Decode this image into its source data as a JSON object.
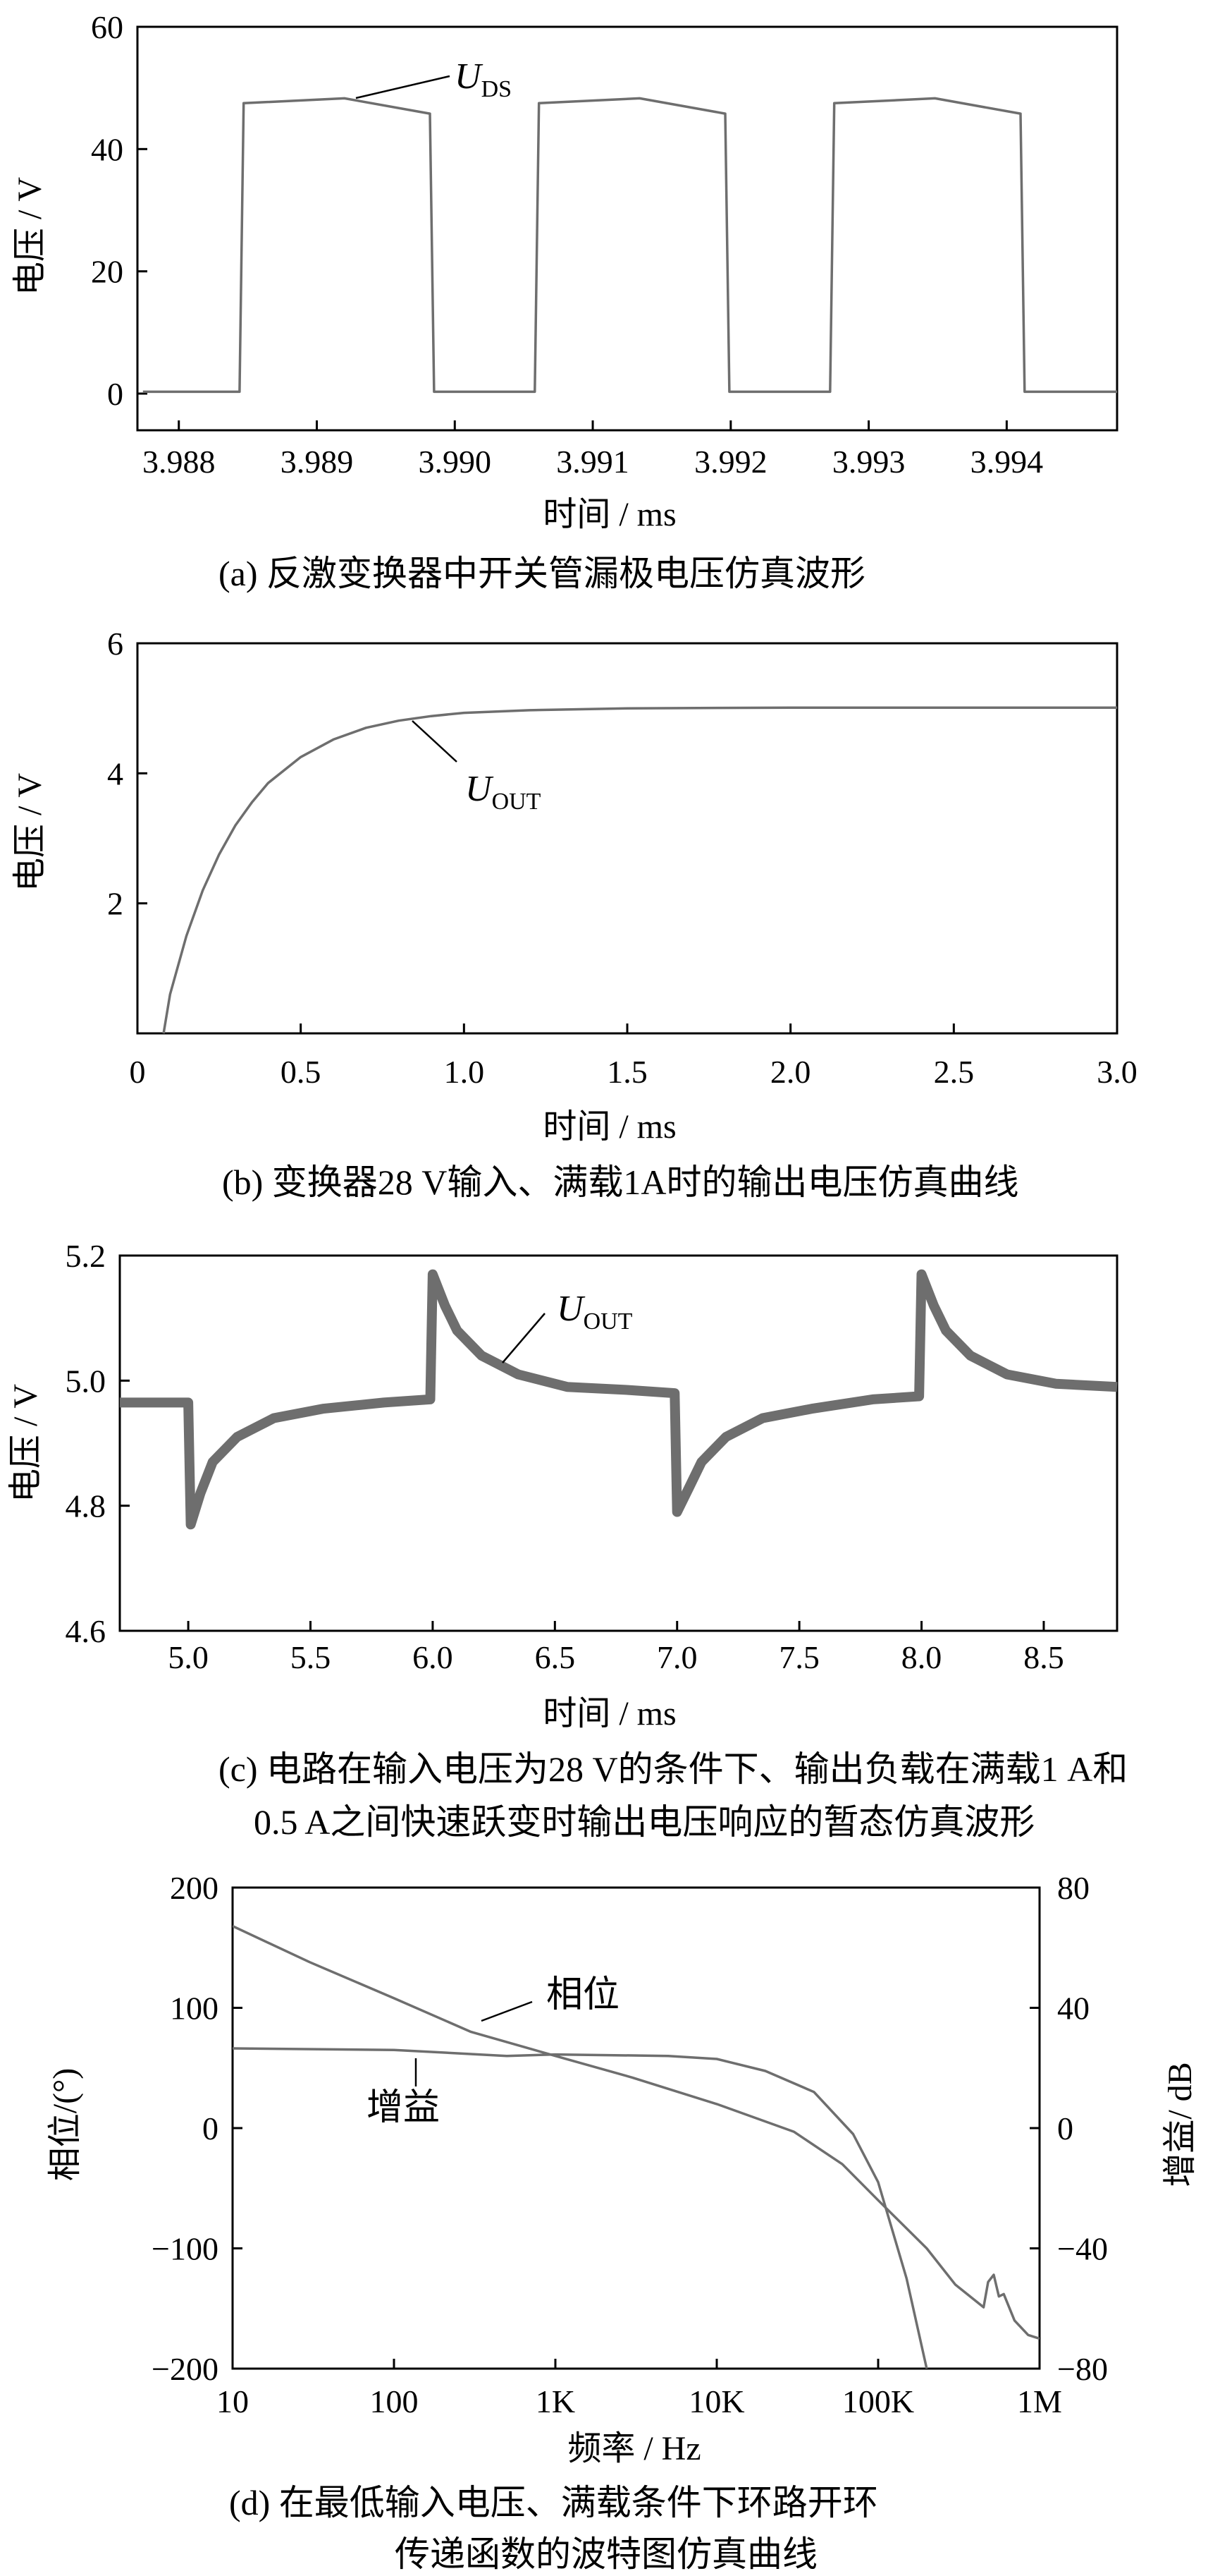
{
  "chart_data": [
    {
      "id": "a",
      "type": "line",
      "caption": "(a)  反激变换器中开关管漏极电压仿真波形",
      "xlabel": "时间 / ms",
      "ylabel": "电压 / V",
      "xlim": [
        3.9877,
        3.9948
      ],
      "ylim": [
        -6,
        60
      ],
      "xticks": [
        3.988,
        3.989,
        3.99,
        3.991,
        3.992,
        3.993,
        3.994
      ],
      "xtick_labels": [
        "3.988",
        "3.989",
        "3.990",
        "3.991",
        "3.992",
        "3.993",
        "3.994"
      ],
      "yticks": [
        0,
        20,
        40,
        60
      ],
      "ytick_labels": [
        "0",
        "20",
        "40",
        "60"
      ],
      "series": [
        {
          "label_main": "U",
          "label_sub": "DS",
          "points": [
            [
              3.98774,
              0.3
            ],
            [
              3.98844,
              0.3
            ],
            [
              3.98847,
              47.5
            ],
            [
              3.9892,
              48.3
            ],
            [
              3.98982,
              45.8
            ],
            [
              3.98985,
              0.3
            ],
            [
              3.99058,
              0.3
            ],
            [
              3.99061,
              47.5
            ],
            [
              3.99134,
              48.3
            ],
            [
              3.99196,
              45.8
            ],
            [
              3.99199,
              0.3
            ],
            [
              3.99272,
              0.3
            ],
            [
              3.99275,
              47.5
            ],
            [
              3.99348,
              48.3
            ],
            [
              3.9941,
              45.8
            ],
            [
              3.99413,
              0.3
            ],
            [
              3.9948,
              0.3
            ]
          ]
        }
      ]
    },
    {
      "id": "b",
      "type": "line",
      "caption": "(b)  变换器28 V输入、满载1A时的输出电压仿真曲线",
      "xlabel": "时间 / ms",
      "ylabel": "电压 / V",
      "xlim": [
        0,
        3.0
      ],
      "ylim": [
        0,
        6
      ],
      "xticks": [
        0,
        0.5,
        1.0,
        1.5,
        2.0,
        2.5,
        3.0
      ],
      "xtick_labels": [
        "0",
        "0.5",
        "1.0",
        "1.5",
        "2.0",
        "2.5",
        "3.0"
      ],
      "yticks": [
        2,
        4,
        6
      ],
      "ytick_labels": [
        "2",
        "4",
        "6"
      ],
      "series": [
        {
          "label_main": "U",
          "label_sub": "OUT",
          "points": [
            [
              0.08,
              0.0
            ],
            [
              0.1,
              0.6
            ],
            [
              0.15,
              1.5
            ],
            [
              0.2,
              2.2
            ],
            [
              0.25,
              2.75
            ],
            [
              0.3,
              3.2
            ],
            [
              0.35,
              3.55
            ],
            [
              0.4,
              3.85
            ],
            [
              0.5,
              4.25
            ],
            [
              0.6,
              4.52
            ],
            [
              0.7,
              4.7
            ],
            [
              0.8,
              4.81
            ],
            [
              0.9,
              4.88
            ],
            [
              1.0,
              4.93
            ],
            [
              1.2,
              4.97
            ],
            [
              1.5,
              5.0
            ],
            [
              2.0,
              5.01
            ],
            [
              2.5,
              5.01
            ],
            [
              3.0,
              5.01
            ]
          ]
        }
      ]
    },
    {
      "id": "c",
      "type": "line",
      "caption": "(c)  电路在输入电压为28 V的条件下、输出负载在满载1 A和",
      "caption2": "0.5 A之间快速跃变时输出电压响应的暂态仿真波形",
      "xlabel": "时间 / ms",
      "ylabel": "电压 / V",
      "xlim": [
        4.72,
        8.8
      ],
      "ylim": [
        4.6,
        5.2
      ],
      "xticks": [
        5.0,
        5.5,
        6.0,
        6.5,
        7.0,
        7.5,
        8.0,
        8.5
      ],
      "xtick_labels": [
        "5.0",
        "5.5",
        "6.0",
        "6.5",
        "7.0",
        "7.5",
        "8.0",
        "8.5"
      ],
      "yticks": [
        4.6,
        4.8,
        5.0,
        5.2
      ],
      "ytick_labels": [
        "4.6",
        "4.8",
        "5.0",
        "5.2"
      ],
      "series": [
        {
          "label_main": "U",
          "label_sub": "OUT",
          "points": [
            [
              4.72,
              4.965
            ],
            [
              5.0,
              4.965
            ],
            [
              5.01,
              4.77
            ],
            [
              5.05,
              4.82
            ],
            [
              5.1,
              4.87
            ],
            [
              5.2,
              4.91
            ],
            [
              5.35,
              4.94
            ],
            [
              5.55,
              4.955
            ],
            [
              5.8,
              4.965
            ],
            [
              5.99,
              4.97
            ],
            [
              6.0,
              5.17
            ],
            [
              6.05,
              5.12
            ],
            [
              6.1,
              5.08
            ],
            [
              6.2,
              5.04
            ],
            [
              6.35,
              5.01
            ],
            [
              6.55,
              4.99
            ],
            [
              6.8,
              4.985
            ],
            [
              6.99,
              4.98
            ],
            [
              7.0,
              4.79
            ],
            [
              7.05,
              4.83
            ],
            [
              7.1,
              4.87
            ],
            [
              7.2,
              4.91
            ],
            [
              7.35,
              4.94
            ],
            [
              7.55,
              4.955
            ],
            [
              7.8,
              4.97
            ],
            [
              7.99,
              4.975
            ],
            [
              8.0,
              5.17
            ],
            [
              8.05,
              5.12
            ],
            [
              8.1,
              5.08
            ],
            [
              8.2,
              5.04
            ],
            [
              8.35,
              5.01
            ],
            [
              8.55,
              4.995
            ],
            [
              8.8,
              4.99
            ]
          ]
        }
      ]
    },
    {
      "id": "d",
      "type": "line",
      "caption": "(d)  在最低输入电压、满载条件下环路开环",
      "caption2": "传递函数的波特图仿真曲线",
      "xlabel": "频率 / Hz",
      "ylabel_left": "相位/(°)",
      "ylabel_right": "增益/ dB",
      "xscale": "log",
      "xlim": [
        10,
        1000000
      ],
      "ylim_left": [
        -200,
        200
      ],
      "ylim_right": [
        -80,
        80
      ],
      "xticks": [
        10,
        100,
        1000,
        10000,
        100000,
        1000000
      ],
      "xtick_labels": [
        "10",
        "100",
        "1K",
        "10K",
        "100K",
        "1M"
      ],
      "yticks_left": [
        -200,
        -100,
        0,
        100,
        200
      ],
      "ytick_labels_left": [
        "−200",
        "−100",
        "0",
        "100",
        "200"
      ],
      "yticks_right": [
        -80,
        -40,
        0,
        40,
        80
      ],
      "ytick_labels_right": [
        "−80",
        "−40",
        "0",
        "40",
        "80"
      ],
      "series": [
        {
          "name": "相位",
          "axis": "left",
          "points": [
            [
              10,
              168
            ],
            [
              30,
              138
            ],
            [
              100,
              108
            ],
            [
              300,
              80
            ],
            [
              1000,
              60
            ],
            [
              3000,
              42
            ],
            [
              10000,
              20
            ],
            [
              30000,
              -3
            ],
            [
              60000,
              -30
            ],
            [
              100000,
              -60
            ],
            [
              200000,
              -100
            ],
            [
              300000,
              -130
            ],
            [
              450000,
              -149
            ],
            [
              480000,
              -128
            ],
            [
              520000,
              -122
            ],
            [
              560000,
              -140
            ],
            [
              600000,
              -138
            ],
            [
              700000,
              -160
            ],
            [
              850000,
              -172
            ],
            [
              1000000,
              -175
            ]
          ]
        },
        {
          "name": "增益",
          "axis": "right",
          "points": [
            [
              10,
              26.5
            ],
            [
              100,
              26
            ],
            [
              500,
              24
            ],
            [
              1000,
              24.5
            ],
            [
              5000,
              24
            ],
            [
              10000,
              23
            ],
            [
              20000,
              19
            ],
            [
              40000,
              12
            ],
            [
              70000,
              -2
            ],
            [
              100000,
              -18
            ],
            [
              150000,
              -50
            ],
            [
              200000,
              -80
            ]
          ]
        }
      ]
    }
  ]
}
